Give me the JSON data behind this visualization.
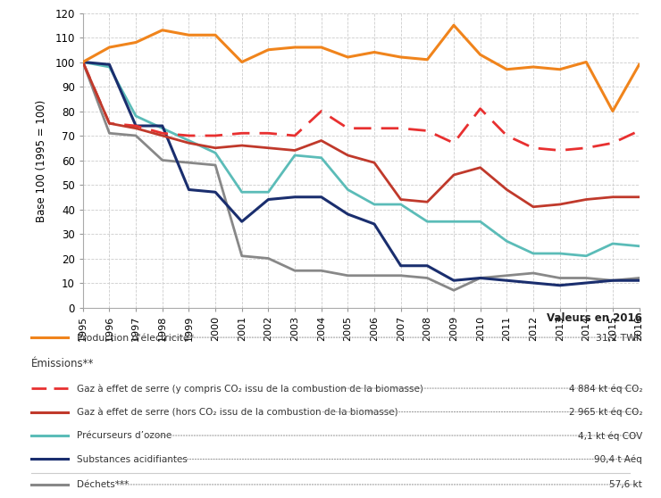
{
  "years": [
    1995,
    1996,
    1997,
    1998,
    1999,
    2000,
    2001,
    2002,
    2003,
    2004,
    2005,
    2006,
    2007,
    2008,
    2009,
    2010,
    2011,
    2012,
    2013,
    2014,
    2015,
    2016
  ],
  "production": [
    100,
    106,
    108,
    113,
    111,
    111,
    100,
    105,
    106,
    106,
    102,
    104,
    102,
    101,
    115,
    103,
    97,
    98,
    97,
    100,
    80,
    99
  ],
  "ges_with_biomass": [
    100,
    75,
    74,
    71,
    70,
    70,
    71,
    71,
    70,
    80,
    73,
    73,
    73,
    72,
    67,
    81,
    70,
    65,
    64,
    65,
    67,
    72
  ],
  "ges_without_biomass": [
    100,
    75,
    73,
    70,
    67,
    65,
    66,
    65,
    64,
    68,
    62,
    59,
    44,
    43,
    54,
    57,
    48,
    41,
    42,
    44,
    45,
    45
  ],
  "precurseurs_ozone": [
    100,
    98,
    78,
    73,
    68,
    63,
    47,
    47,
    62,
    61,
    48,
    42,
    42,
    35,
    35,
    35,
    27,
    22,
    22,
    21,
    26,
    25
  ],
  "substances_acidifiantes": [
    100,
    99,
    74,
    74,
    48,
    47,
    35,
    44,
    45,
    45,
    38,
    34,
    17,
    17,
    11,
    12,
    11,
    10,
    9,
    10,
    11,
    11
  ],
  "dechets": [
    100,
    71,
    70,
    60,
    59,
    58,
    21,
    20,
    15,
    15,
    13,
    13,
    13,
    12,
    7,
    12,
    13,
    14,
    12,
    12,
    11,
    12
  ],
  "color_production": "#f0841c",
  "color_ges_with": "#e83030",
  "color_ges_without": "#c0392b",
  "color_precurseurs": "#5bbcb8",
  "color_acidifiantes": "#1a2e6e",
  "color_dechets": "#888888",
  "ylabel": "Base 100 (1995 = 100)",
  "ylim_min": 0,
  "ylim_max": 120,
  "yticks": [
    0,
    10,
    20,
    30,
    40,
    50,
    60,
    70,
    80,
    90,
    100,
    110,
    120
  ],
  "bg_color": "#ffffff",
  "grid_color": "#cccccc",
  "valeurs_header": "Valeurs en 2016",
  "emissions_header": "Émissions**",
  "label_production": "Production d'électricité*",
  "val_production": "31,2 TWh",
  "label_ges_with": "Gaz à effet de serre (y compris CO₂ issu de la combustion de la biomasse)",
  "val_ges_with": "4 884 kt éq CO₂",
  "label_ges_without": "Gaz à effet de serre (hors CO₂ issu de la combustion de la biomasse)",
  "val_ges_without": "2 965 kt éq CO₂",
  "label_precurseurs": "Précurseurs d’ozone",
  "val_precurseurs": "4,1 kt éq COV",
  "label_acidifiantes": "Substances acidifiantes",
  "val_acidifiantes": "90,4 t Aéq",
  "label_dechets": "Déchets***",
  "val_dechets": "57,6 kt"
}
